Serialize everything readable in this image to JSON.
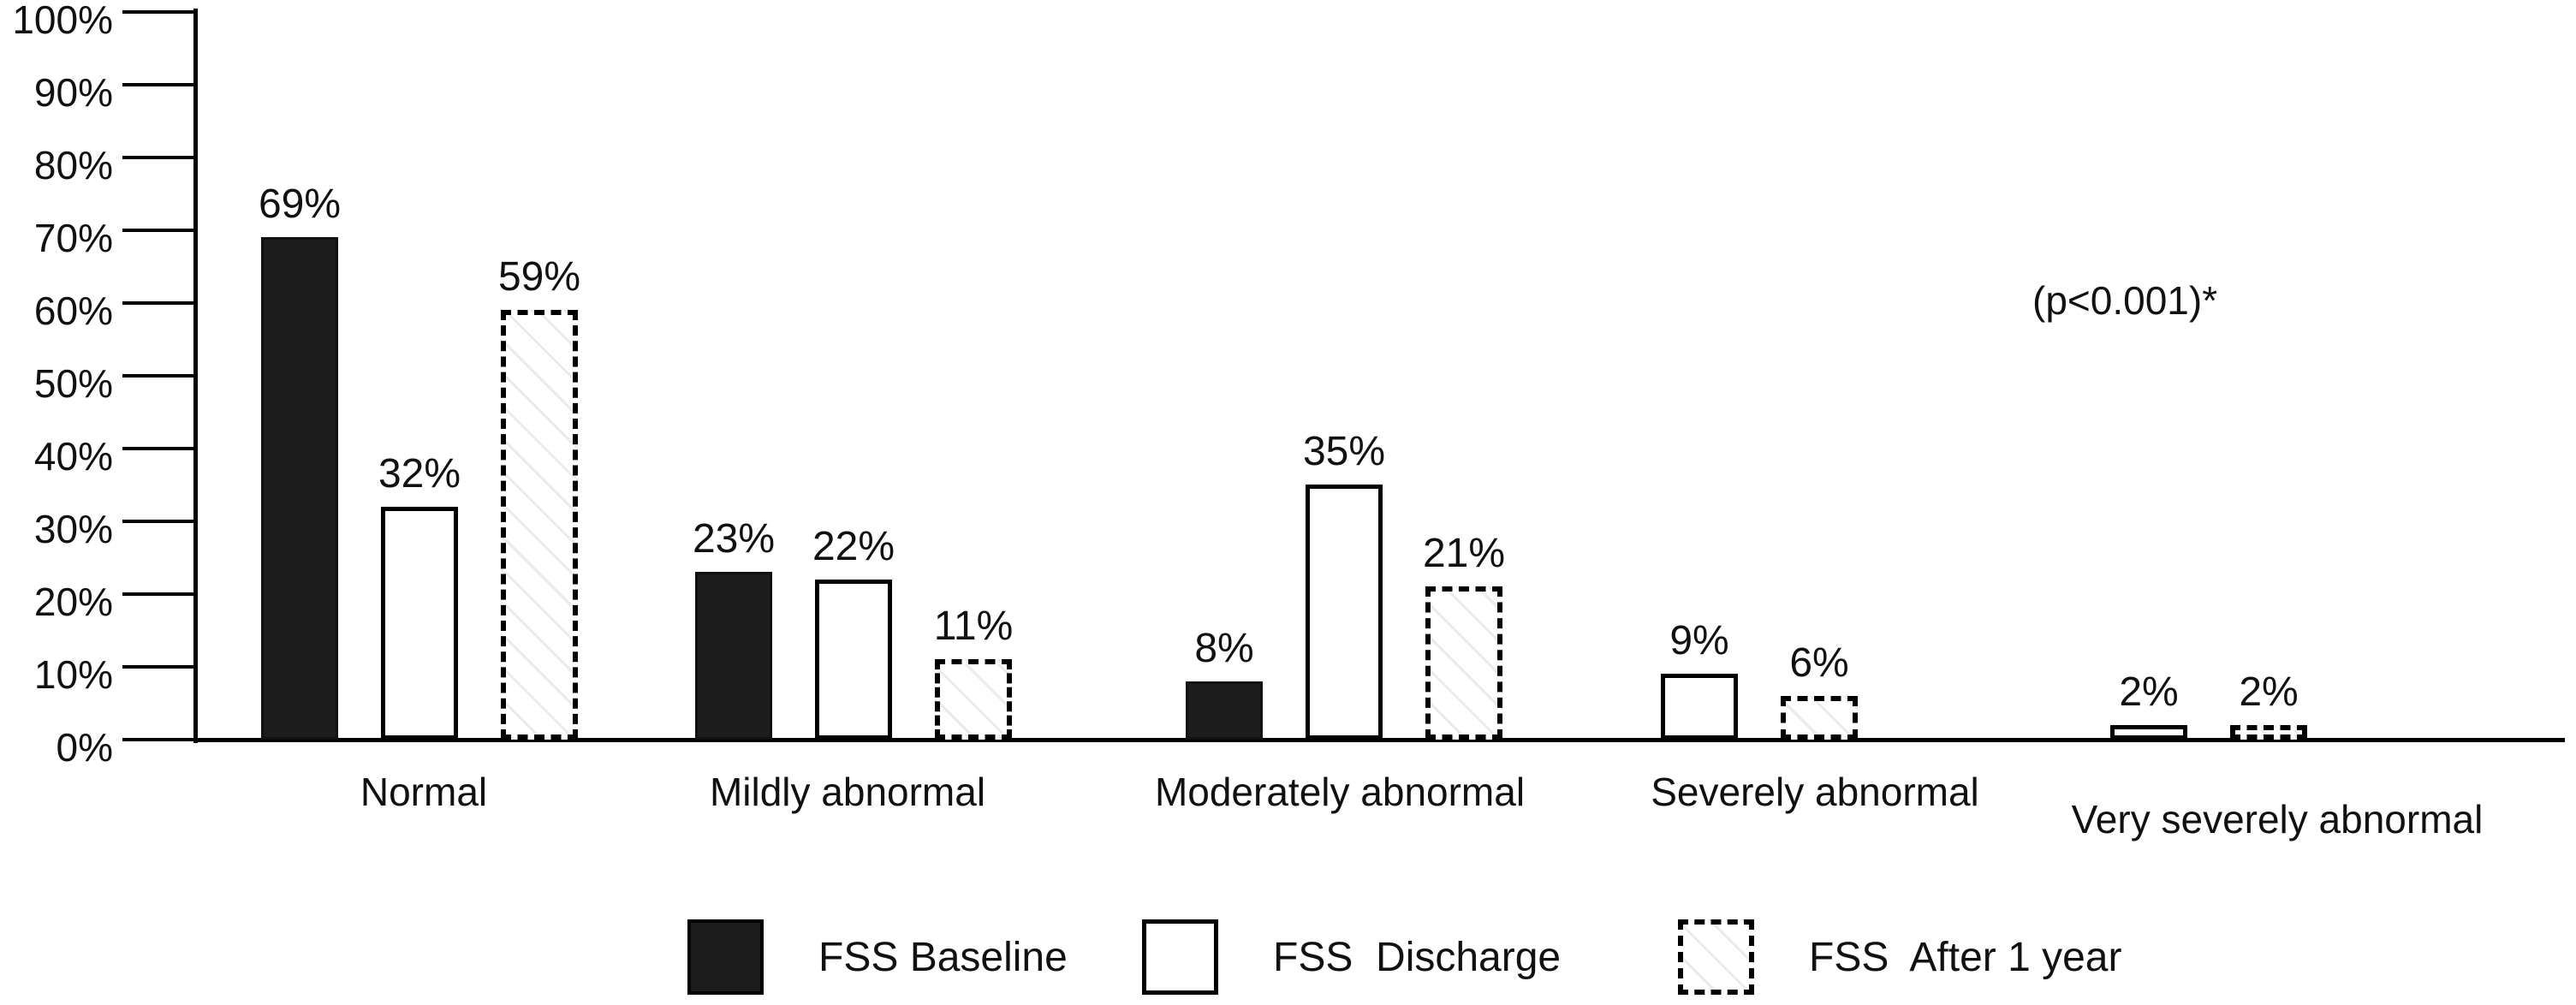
{
  "chart_data": {
    "type": "bar",
    "title": "",
    "categories": [
      "Normal",
      "Mildly abnormal",
      "Moderately abnormal",
      "Severely abnormal",
      "Very severely abnormal"
    ],
    "series": [
      {
        "name": "FSS Baseline",
        "pattern": "solid",
        "values": [
          69,
          23,
          8,
          null,
          null
        ]
      },
      {
        "name": "FSS  Discharge",
        "pattern": "outline",
        "values": [
          32,
          22,
          35,
          9,
          2
        ]
      },
      {
        "name": "FSS  After 1 year",
        "pattern": "hatched-dashed",
        "values": [
          59,
          11,
          21,
          6,
          2
        ]
      }
    ],
    "value_labels": [
      [
        "69%",
        "23%",
        "8%",
        null,
        null
      ],
      [
        "32%",
        "22%",
        "35%",
        "9%",
        "2%"
      ],
      [
        "59%",
        "11%",
        "21%",
        "6%",
        "2%"
      ]
    ],
    "yticks": [
      "100%",
      "90%",
      "80%",
      "70%",
      "60%",
      "50%",
      "40%",
      "30%",
      "20%",
      "10%",
      "0%"
    ],
    "ylim": [
      0,
      100
    ],
    "grid": false,
    "legend_position": "bottom",
    "annotation": "(p<0.001)*"
  },
  "colors": {
    "solid_fill": "#1d1d1d",
    "outline_stroke": "#000000",
    "hatch_line": "#ebebeb",
    "background": "#ffffff",
    "text": "#111111"
  }
}
